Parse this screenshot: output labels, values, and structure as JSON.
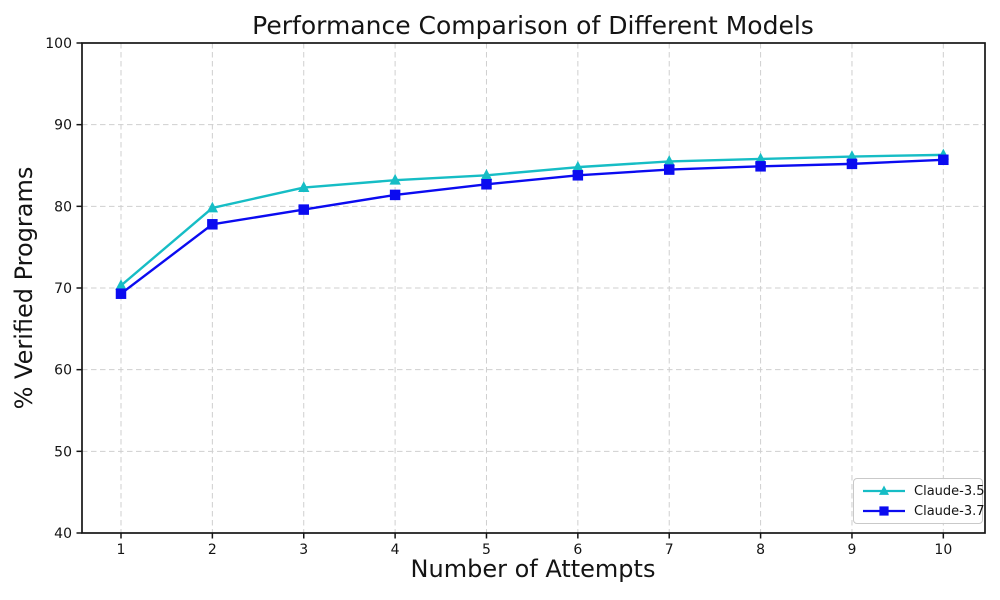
{
  "chart_data": {
    "type": "line",
    "title": "Performance Comparison of Different Models",
    "xlabel": "Number of Attempts",
    "ylabel": "% Verified Programs",
    "x": [
      1,
      2,
      3,
      4,
      5,
      6,
      7,
      8,
      9,
      10
    ],
    "xticks": [
      1,
      2,
      3,
      4,
      5,
      6,
      7,
      8,
      9,
      10
    ],
    "yticks": [
      40,
      50,
      60,
      70,
      80,
      90,
      100
    ],
    "xlim": [
      0.57,
      10.45
    ],
    "ylim": [
      40,
      100
    ],
    "grid": true,
    "grid_style": "dashed",
    "grid_color": "#cfcfcf",
    "axis_color": "#151515",
    "background_color": "#ffffff",
    "legend_position": "lower right",
    "series": [
      {
        "name": "Claude-3.5",
        "color": "#16bdc5",
        "marker": "triangle-up",
        "values": [
          70.3,
          79.8,
          82.3,
          83.2,
          83.8,
          84.8,
          85.5,
          85.8,
          86.1,
          86.3
        ]
      },
      {
        "name": "Claude-3.7",
        "color": "#0b0bf0",
        "marker": "square",
        "values": [
          69.3,
          77.8,
          79.6,
          81.4,
          82.7,
          83.8,
          84.5,
          84.9,
          85.2,
          85.7
        ]
      }
    ]
  }
}
